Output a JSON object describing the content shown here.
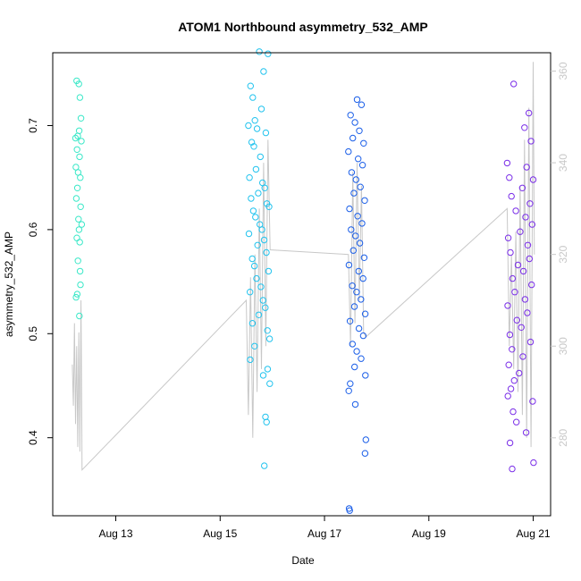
{
  "chart_data": {
    "type": "scatter",
    "title": "ATOM1 Northbound asymmetry_532_AMP",
    "xlabel": "Date",
    "ylabel": "asymmetry_532_AMP",
    "xlim": [
      "2012-08-11T19:00",
      "2012-08-21T08:00"
    ],
    "ylim": [
      0.325,
      0.77
    ],
    "x_ticks": [
      {
        "value": "2012-08-13T00:00",
        "label": "Aug 13"
      },
      {
        "value": "2012-08-15T00:00",
        "label": "Aug 15"
      },
      {
        "value": "2012-08-17T00:00",
        "label": "Aug 17"
      },
      {
        "value": "2012-08-19T00:00",
        "label": "Aug 19"
      },
      {
        "value": "2012-08-21T00:00",
        "label": "Aug 21"
      }
    ],
    "y_ticks": [
      0.4,
      0.5,
      0.6,
      0.7
    ],
    "y2lim": [
      263,
      364
    ],
    "y2_ticks": [
      280,
      300,
      320,
      340,
      360
    ],
    "grid": false,
    "legend": "none",
    "series": [
      {
        "color": "#3be8c8",
        "points": [
          [
            "2012-08-12T06:00",
            0.743
          ],
          [
            "2012-08-12T07:00",
            0.74
          ],
          [
            "2012-08-12T07:30",
            0.727
          ],
          [
            "2012-08-12T08:00",
            0.707
          ],
          [
            "2012-08-12T06:30",
            0.69
          ],
          [
            "2012-08-12T07:10",
            0.695
          ],
          [
            "2012-08-12T05:30",
            0.688
          ],
          [
            "2012-08-12T08:10",
            0.685
          ],
          [
            "2012-08-12T06:10",
            0.677
          ],
          [
            "2012-08-12T07:20",
            0.67
          ],
          [
            "2012-08-12T05:40",
            0.66
          ],
          [
            "2012-08-12T06:40",
            0.655
          ],
          [
            "2012-08-12T07:40",
            0.65
          ],
          [
            "2012-08-12T06:20",
            0.64
          ],
          [
            "2012-08-12T05:50",
            0.63
          ],
          [
            "2012-08-12T07:50",
            0.622
          ],
          [
            "2012-08-12T06:50",
            0.61
          ],
          [
            "2012-08-12T08:20",
            0.605
          ],
          [
            "2012-08-12T07:05",
            0.6
          ],
          [
            "2012-08-12T06:05",
            0.592
          ],
          [
            "2012-08-12T07:25",
            0.588
          ],
          [
            "2012-08-12T06:35",
            0.57
          ],
          [
            "2012-08-12T07:35",
            0.56
          ],
          [
            "2012-08-12T07:45",
            0.547
          ],
          [
            "2012-08-12T06:15",
            0.538
          ],
          [
            "2012-08-12T05:45",
            0.535
          ],
          [
            "2012-08-12T07:15",
            0.517
          ]
        ]
      },
      {
        "color": "#22c3ee",
        "points": [
          [
            "2012-08-15T14:00",
            0.738
          ],
          [
            "2012-08-15T18:00",
            0.771
          ],
          [
            "2012-08-15T22:00",
            0.769
          ],
          [
            "2012-08-15T20:00",
            0.752
          ],
          [
            "2012-08-15T15:00",
            0.727
          ],
          [
            "2012-08-15T19:00",
            0.716
          ],
          [
            "2012-08-15T16:00",
            0.705
          ],
          [
            "2012-08-15T13:00",
            0.7
          ],
          [
            "2012-08-15T17:00",
            0.697
          ],
          [
            "2012-08-15T21:00",
            0.693
          ],
          [
            "2012-08-15T14:30",
            0.684
          ],
          [
            "2012-08-15T15:30",
            0.68
          ],
          [
            "2012-08-15T18:30",
            0.67
          ],
          [
            "2012-08-15T16:30",
            0.658
          ],
          [
            "2012-08-15T13:30",
            0.65
          ],
          [
            "2012-08-15T19:30",
            0.645
          ],
          [
            "2012-08-15T20:30",
            0.64
          ],
          [
            "2012-08-15T17:30",
            0.635
          ],
          [
            "2012-08-15T14:15",
            0.63
          ],
          [
            "2012-08-15T21:30",
            0.625
          ],
          [
            "2012-08-15T22:30",
            0.622
          ],
          [
            "2012-08-15T15:15",
            0.618
          ],
          [
            "2012-08-15T16:15",
            0.612
          ],
          [
            "2012-08-15T18:15",
            0.605
          ],
          [
            "2012-08-15T19:15",
            0.6
          ],
          [
            "2012-08-15T13:15",
            0.596
          ],
          [
            "2012-08-15T20:15",
            0.59
          ],
          [
            "2012-08-15T17:15",
            0.585
          ],
          [
            "2012-08-15T21:15",
            0.578
          ],
          [
            "2012-08-15T14:45",
            0.572
          ],
          [
            "2012-08-15T15:45",
            0.565
          ],
          [
            "2012-08-15T22:15",
            0.56
          ],
          [
            "2012-08-15T16:45",
            0.553
          ],
          [
            "2012-08-15T18:45",
            0.545
          ],
          [
            "2012-08-15T13:45",
            0.54
          ],
          [
            "2012-08-15T19:45",
            0.532
          ],
          [
            "2012-08-15T20:45",
            0.525
          ],
          [
            "2012-08-15T17:45",
            0.518
          ],
          [
            "2012-08-15T14:50",
            0.51
          ],
          [
            "2012-08-15T21:45",
            0.503
          ],
          [
            "2012-08-15T22:45",
            0.495
          ],
          [
            "2012-08-15T15:50",
            0.488
          ],
          [
            "2012-08-15T13:50",
            0.475
          ],
          [
            "2012-08-15T21:50",
            0.466
          ],
          [
            "2012-08-15T19:50",
            0.46
          ],
          [
            "2012-08-15T22:50",
            0.452
          ],
          [
            "2012-08-15T20:50",
            0.42
          ],
          [
            "2012-08-15T21:20",
            0.415
          ],
          [
            "2012-08-15T20:20",
            0.373
          ]
        ]
      },
      {
        "color": "#1a5ee8",
        "points": [
          [
            "2012-08-17T15:00",
            0.725
          ],
          [
            "2012-08-17T17:00",
            0.72
          ],
          [
            "2012-08-17T12:00",
            0.71
          ],
          [
            "2012-08-17T14:00",
            0.703
          ],
          [
            "2012-08-17T16:00",
            0.695
          ],
          [
            "2012-08-17T13:00",
            0.688
          ],
          [
            "2012-08-17T18:00",
            0.683
          ],
          [
            "2012-08-17T11:00",
            0.675
          ],
          [
            "2012-08-17T15:30",
            0.668
          ],
          [
            "2012-08-17T17:30",
            0.662
          ],
          [
            "2012-08-17T12:30",
            0.655
          ],
          [
            "2012-08-17T14:30",
            0.648
          ],
          [
            "2012-08-17T16:30",
            0.641
          ],
          [
            "2012-08-17T13:30",
            0.635
          ],
          [
            "2012-08-17T18:30",
            0.628
          ],
          [
            "2012-08-17T11:30",
            0.62
          ],
          [
            "2012-08-17T15:15",
            0.613
          ],
          [
            "2012-08-17T17:15",
            0.606
          ],
          [
            "2012-08-17T12:15",
            0.6
          ],
          [
            "2012-08-17T14:15",
            0.594
          ],
          [
            "2012-08-17T16:15",
            0.587
          ],
          [
            "2012-08-17T13:15",
            0.58
          ],
          [
            "2012-08-17T18:15",
            0.573
          ],
          [
            "2012-08-17T11:15",
            0.566
          ],
          [
            "2012-08-17T15:45",
            0.56
          ],
          [
            "2012-08-17T17:45",
            0.553
          ],
          [
            "2012-08-17T12:45",
            0.546
          ],
          [
            "2012-08-17T14:45",
            0.54
          ],
          [
            "2012-08-17T16:45",
            0.533
          ],
          [
            "2012-08-17T13:45",
            0.526
          ],
          [
            "2012-08-17T18:45",
            0.519
          ],
          [
            "2012-08-17T11:45",
            0.512
          ],
          [
            "2012-08-17T15:50",
            0.505
          ],
          [
            "2012-08-17T17:50",
            0.498
          ],
          [
            "2012-08-17T12:50",
            0.49
          ],
          [
            "2012-08-17T14:50",
            0.483
          ],
          [
            "2012-08-17T16:50",
            0.476
          ],
          [
            "2012-08-17T13:50",
            0.468
          ],
          [
            "2012-08-17T18:50",
            0.46
          ],
          [
            "2012-08-17T11:50",
            0.452
          ],
          [
            "2012-08-17T11:10",
            0.445
          ],
          [
            "2012-08-17T14:10",
            0.432
          ],
          [
            "2012-08-17T19:00",
            0.398
          ],
          [
            "2012-08-17T18:40",
            0.385
          ],
          [
            "2012-08-17T11:20",
            0.332
          ],
          [
            "2012-08-17T11:35",
            0.33
          ]
        ]
      },
      {
        "color": "#7a2ee8",
        "points": [
          [
            "2012-08-20T15:00",
            0.74
          ],
          [
            "2012-08-20T22:00",
            0.712
          ],
          [
            "2012-08-20T20:00",
            0.698
          ],
          [
            "2012-08-20T23:00",
            0.685
          ],
          [
            "2012-08-20T12:00",
            0.664
          ],
          [
            "2012-08-20T21:00",
            0.66
          ],
          [
            "2012-08-20T13:00",
            0.65
          ],
          [
            "2012-08-21T00:00",
            0.648
          ],
          [
            "2012-08-20T19:00",
            0.64
          ],
          [
            "2012-08-20T14:00",
            0.632
          ],
          [
            "2012-08-20T22:30",
            0.625
          ],
          [
            "2012-08-20T16:00",
            0.618
          ],
          [
            "2012-08-20T20:30",
            0.612
          ],
          [
            "2012-08-20T23:30",
            0.605
          ],
          [
            "2012-08-20T18:00",
            0.598
          ],
          [
            "2012-08-20T12:30",
            0.592
          ],
          [
            "2012-08-20T21:30",
            0.585
          ],
          [
            "2012-08-20T13:30",
            0.578
          ],
          [
            "2012-08-20T22:15",
            0.572
          ],
          [
            "2012-08-20T17:00",
            0.566
          ],
          [
            "2012-08-20T19:30",
            0.56
          ],
          [
            "2012-08-20T14:30",
            0.553
          ],
          [
            "2012-08-20T23:15",
            0.547
          ],
          [
            "2012-08-20T15:30",
            0.54
          ],
          [
            "2012-08-20T20:15",
            0.533
          ],
          [
            "2012-08-20T12:15",
            0.527
          ],
          [
            "2012-08-20T21:15",
            0.52
          ],
          [
            "2012-08-20T16:30",
            0.513
          ],
          [
            "2012-08-20T18:30",
            0.506
          ],
          [
            "2012-08-20T13:15",
            0.499
          ],
          [
            "2012-08-20T22:45",
            0.492
          ],
          [
            "2012-08-20T14:15",
            0.485
          ],
          [
            "2012-08-20T19:15",
            0.478
          ],
          [
            "2012-08-20T12:45",
            0.47
          ],
          [
            "2012-08-20T17:30",
            0.462
          ],
          [
            "2012-08-20T15:15",
            0.455
          ],
          [
            "2012-08-20T13:45",
            0.447
          ],
          [
            "2012-08-20T12:20",
            0.44
          ],
          [
            "2012-08-20T23:45",
            0.435
          ],
          [
            "2012-08-20T14:45",
            0.425
          ],
          [
            "2012-08-20T16:15",
            0.415
          ],
          [
            "2012-08-20T20:45",
            0.405
          ],
          [
            "2012-08-20T13:20",
            0.395
          ],
          [
            "2012-08-20T14:20",
            0.37
          ],
          [
            "2012-08-21T00:10",
            0.376
          ]
        ]
      }
    ],
    "secondary_line": {
      "color": "#c8c8c8",
      "points": [
        [
          "2012-08-12T04:00",
          296
        ],
        [
          "2012-08-12T04:30",
          287
        ],
        [
          "2012-08-12T05:00",
          305
        ],
        [
          "2012-08-12T05:30",
          283
        ],
        [
          "2012-08-12T06:00",
          300
        ],
        [
          "2012-08-12T06:30",
          278
        ],
        [
          "2012-08-12T07:00",
          303
        ],
        [
          "2012-08-12T07:30",
          277
        ],
        [
          "2012-08-12T08:00",
          310
        ],
        [
          "2012-08-12T08:20",
          287
        ],
        [
          "2012-08-12T08:30",
          273
        ],
        [
          "2012-08-15T12:00",
          310
        ],
        [
          "2012-08-15T13:00",
          285
        ],
        [
          "2012-08-15T14:00",
          315
        ],
        [
          "2012-08-15T15:00",
          280
        ],
        [
          "2012-08-15T16:00",
          320
        ],
        [
          "2012-08-15T17:00",
          290
        ],
        [
          "2012-08-15T18:00",
          330
        ],
        [
          "2012-08-15T19:00",
          295
        ],
        [
          "2012-08-15T20:00",
          340
        ],
        [
          "2012-08-15T21:00",
          300
        ],
        [
          "2012-08-15T22:00",
          345
        ],
        [
          "2012-08-15T23:00",
          321
        ],
        [
          "2012-08-17T11:00",
          320
        ],
        [
          "2012-08-17T12:00",
          300
        ],
        [
          "2012-08-17T13:00",
          338
        ],
        [
          "2012-08-17T14:00",
          305
        ],
        [
          "2012-08-17T15:00",
          340
        ],
        [
          "2012-08-17T16:00",
          310
        ],
        [
          "2012-08-17T17:00",
          335
        ],
        [
          "2012-08-17T18:00",
          303
        ],
        [
          "2012-08-17T19:00",
          302
        ],
        [
          "2012-08-20T12:00",
          330
        ],
        [
          "2012-08-20T13:00",
          300
        ],
        [
          "2012-08-20T14:00",
          320
        ],
        [
          "2012-08-20T15:00",
          295
        ],
        [
          "2012-08-20T16:00",
          325
        ],
        [
          "2012-08-20T17:00",
          290
        ],
        [
          "2012-08-20T18:00",
          335
        ],
        [
          "2012-08-20T19:00",
          285
        ],
        [
          "2012-08-20T20:00",
          345
        ],
        [
          "2012-08-20T21:00",
          280
        ],
        [
          "2012-08-20T22:00",
          352
        ],
        [
          "2012-08-20T23:00",
          278
        ],
        [
          "2012-08-21T00:00",
          362
        ],
        [
          "2012-08-21T00:30",
          320
        ]
      ]
    }
  }
}
